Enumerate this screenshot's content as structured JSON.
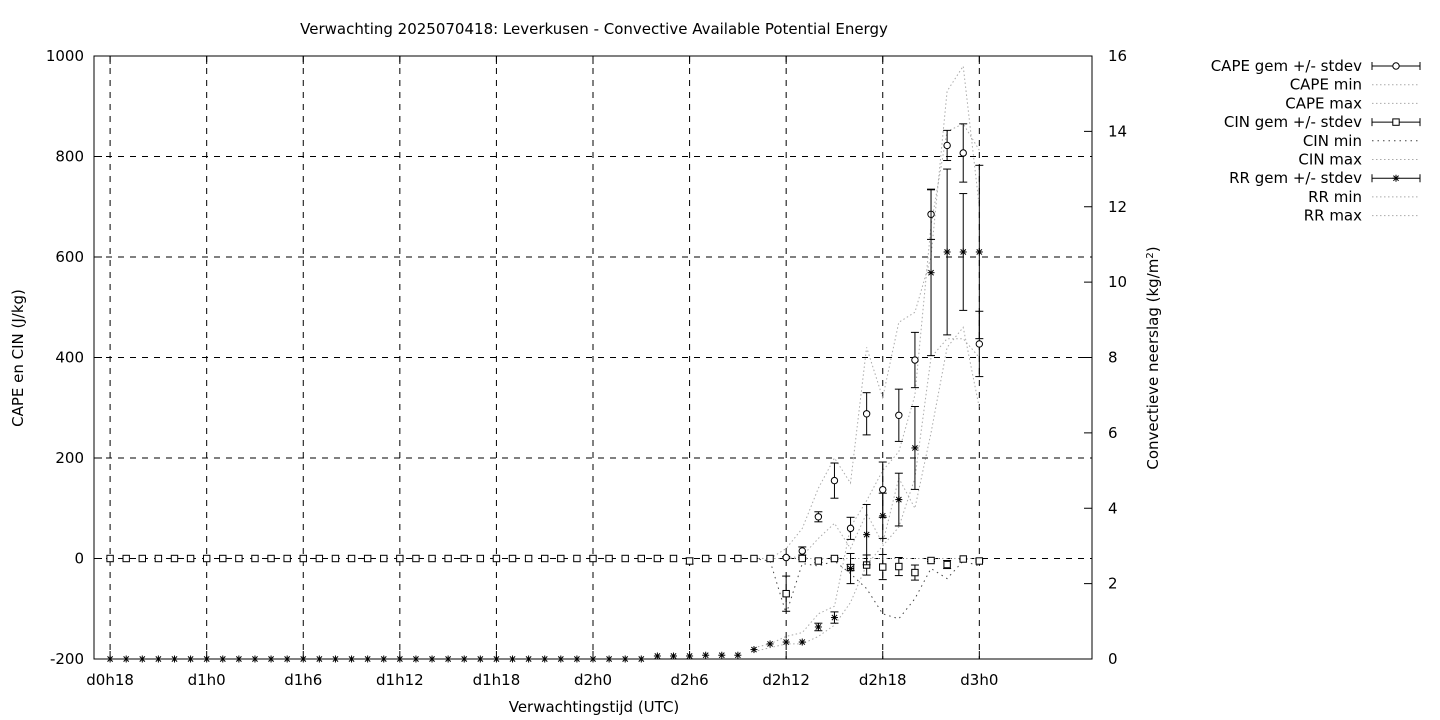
{
  "chart_data": {
    "type": "line",
    "title": "Verwachting 2025070418: Leverkusen - Convective Available Potential Energy",
    "xlabel": "Verwachtingstijd (UTC)",
    "ylabel": "CAPE en CIN (J/kg)",
    "y2label": "Convectieve neerslag (kg/m²)",
    "xlim": [
      17,
      79
    ],
    "ylim": [
      -200,
      1000
    ],
    "y2lim": [
      0,
      16
    ],
    "grid": true,
    "legend_position": "top-right-outside",
    "x_ticks": [
      {
        "x": 18,
        "label": "d0h18"
      },
      {
        "x": 24,
        "label": "d1h0"
      },
      {
        "x": 30,
        "label": "d1h6"
      },
      {
        "x": 36,
        "label": "d1h12"
      },
      {
        "x": 42,
        "label": "d1h18"
      },
      {
        "x": 48,
        "label": "d2h0"
      },
      {
        "x": 54,
        "label": "d2h6"
      },
      {
        "x": 60,
        "label": "d2h12"
      },
      {
        "x": 66,
        "label": "d2h18"
      },
      {
        "x": 72,
        "label": "d3h0"
      }
    ],
    "y_ticks": [
      -200,
      0,
      200,
      400,
      600,
      800,
      1000
    ],
    "y2_ticks": [
      0,
      2,
      4,
      6,
      8,
      10,
      12,
      14,
      16
    ],
    "legend": [
      {
        "label": "CAPE gem +/- stdev",
        "marker": "circle",
        "errorbar": true
      },
      {
        "label": "CAPE min",
        "style": "dotted"
      },
      {
        "label": "CAPE max",
        "style": "dotted"
      },
      {
        "label": "CIN gem +/- stdev",
        "marker": "square",
        "errorbar": true
      },
      {
        "label": "CIN min",
        "style": "dotted-dark"
      },
      {
        "label": "CIN max",
        "style": "dotted"
      },
      {
        "label": "RR gem +/- stdev",
        "marker": "star",
        "errorbar": true
      },
      {
        "label": "RR min",
        "style": "dotted"
      },
      {
        "label": "RR max",
        "style": "dotted"
      }
    ],
    "series": [
      {
        "name": "CAPE gem +/- stdev",
        "axis": "y",
        "x": [
          60,
          61,
          62,
          63,
          64,
          65,
          66,
          67,
          68,
          69,
          70,
          71,
          72
        ],
        "y": [
          2,
          15,
          83,
          155,
          60,
          288,
          137,
          285,
          395,
          685,
          822,
          807,
          427
        ],
        "err": [
          2,
          8,
          10,
          35,
          22,
          42,
          55,
          52,
          55,
          50,
          30,
          58,
          65
        ]
      },
      {
        "name": "CAPE min",
        "axis": "y",
        "x": [
          59,
          60,
          61,
          62,
          63,
          64,
          65,
          66,
          67,
          68,
          69,
          70,
          71,
          72
        ],
        "y": [
          0,
          0,
          5,
          40,
          70,
          20,
          90,
          30,
          160,
          100,
          250,
          420,
          460,
          300
        ]
      },
      {
        "name": "CAPE max",
        "axis": "y",
        "x": [
          59,
          60,
          61,
          62,
          63,
          64,
          65,
          66,
          67,
          68,
          69,
          70,
          71,
          72
        ],
        "y": [
          0,
          20,
          60,
          140,
          200,
          150,
          420,
          320,
          470,
          490,
          600,
          930,
          980,
          700
        ]
      },
      {
        "name": "CIN gem +/- stdev",
        "axis": "y",
        "x": [
          18,
          19,
          20,
          21,
          22,
          23,
          24,
          25,
          26,
          27,
          28,
          29,
          30,
          31,
          32,
          33,
          34,
          35,
          36,
          37,
          38,
          39,
          40,
          41,
          42,
          43,
          44,
          45,
          46,
          47,
          48,
          49,
          50,
          51,
          52,
          53,
          54,
          55,
          56,
          57,
          58,
          59,
          60,
          61,
          62,
          63,
          64,
          65,
          66,
          67,
          68,
          69,
          70,
          71,
          72
        ],
        "y": [
          0,
          0,
          0,
          0,
          0,
          0,
          0,
          0,
          0,
          0,
          0,
          0,
          0,
          0,
          0,
          0,
          0,
          0,
          0,
          0,
          0,
          0,
          0,
          0,
          0,
          0,
          0,
          0,
          0,
          0,
          0,
          0,
          0,
          0,
          0,
          0,
          -5,
          0,
          0,
          0,
          0,
          0,
          -70,
          0,
          -5,
          0,
          -18,
          -13,
          -17,
          -16,
          -28,
          -4,
          -12,
          -1,
          -5
        ],
        "err": [
          0,
          0,
          0,
          0,
          0,
          0,
          0,
          0,
          0,
          0,
          0,
          0,
          0,
          0,
          0,
          0,
          0,
          0,
          0,
          0,
          0,
          0,
          0,
          0,
          0,
          0,
          0,
          0,
          0,
          0,
          0,
          0,
          0,
          0,
          0,
          0,
          6,
          0,
          0,
          0,
          0,
          0,
          35,
          2,
          3,
          2,
          6,
          20,
          25,
          18,
          15,
          2,
          8,
          1,
          2
        ]
      },
      {
        "name": "CIN min",
        "axis": "y",
        "x": [
          58,
          59,
          60,
          61,
          62,
          63,
          64,
          65,
          66,
          67,
          68,
          69,
          70,
          71,
          72
        ],
        "y": [
          0,
          -5,
          -110,
          -10,
          -15,
          -5,
          -30,
          -60,
          -110,
          -120,
          -80,
          -20,
          -40,
          -5,
          -15
        ]
      },
      {
        "name": "CIN max",
        "axis": "y",
        "x": [
          58,
          59,
          60,
          61,
          62,
          63,
          64,
          65,
          66,
          67,
          68,
          69,
          70,
          71,
          72
        ],
        "y": [
          0,
          0,
          0,
          0,
          0,
          0,
          0,
          0,
          0,
          0,
          0,
          0,
          0,
          0,
          0
        ]
      },
      {
        "name": "RR gem +/- stdev",
        "axis": "y2",
        "x": [
          18,
          19,
          20,
          21,
          22,
          23,
          24,
          25,
          26,
          27,
          28,
          29,
          30,
          31,
          32,
          33,
          34,
          35,
          36,
          37,
          38,
          39,
          40,
          41,
          42,
          43,
          44,
          45,
          46,
          47,
          48,
          49,
          50,
          51,
          52,
          53,
          54,
          55,
          56,
          57,
          58,
          59,
          60,
          61,
          62,
          63,
          64,
          65,
          66,
          67,
          68,
          69,
          70,
          71,
          72
        ],
        "y": [
          0,
          0,
          0,
          0,
          0,
          0,
          0,
          0,
          0,
          0,
          0,
          0,
          0,
          0,
          0,
          0,
          0,
          0,
          0,
          0,
          0,
          0,
          0,
          0,
          0,
          0,
          0,
          0,
          0,
          0,
          0,
          0,
          0,
          0,
          0.08,
          0.08,
          0.08,
          0.1,
          0.1,
          0.1,
          0.25,
          0.4,
          0.45,
          0.45,
          0.85,
          1.1,
          2.4,
          3.3,
          3.8,
          4.23,
          5.6,
          10.25,
          10.8,
          10.8,
          10.8
        ],
        "err": [
          0,
          0,
          0,
          0,
          0,
          0,
          0,
          0,
          0,
          0,
          0,
          0,
          0,
          0,
          0,
          0,
          0,
          0,
          0,
          0,
          0,
          0,
          0,
          0,
          0,
          0,
          0,
          0,
          0,
          0,
          0,
          0,
          0,
          0,
          0,
          0,
          0,
          0,
          0,
          0,
          0,
          0,
          0,
          0,
          0.1,
          0.15,
          0.4,
          0.8,
          0.6,
          0.7,
          1.1,
          2.2,
          2.2,
          1.55,
          2.3
        ]
      },
      {
        "name": "RR min",
        "axis": "y2",
        "x": [
          58,
          59,
          60,
          61,
          62,
          63,
          64,
          65,
          66,
          67,
          68,
          69,
          70,
          71,
          72
        ],
        "y": [
          0.2,
          0.3,
          0.4,
          0.4,
          0.6,
          0.9,
          1.5,
          2.5,
          3.0,
          3.5,
          4.8,
          8.0,
          8.5,
          8.5,
          8.0
        ]
      },
      {
        "name": "RR max",
        "axis": "y2",
        "x": [
          58,
          59,
          60,
          61,
          62,
          63,
          64,
          65,
          66,
          67,
          68,
          69,
          70,
          71,
          72
        ],
        "y": [
          0.3,
          0.4,
          0.6,
          0.7,
          1.2,
          1.4,
          3.5,
          4.2,
          5.0,
          5.5,
          7.0,
          11.5,
          14.0,
          14.2,
          13.5
        ]
      }
    ]
  }
}
